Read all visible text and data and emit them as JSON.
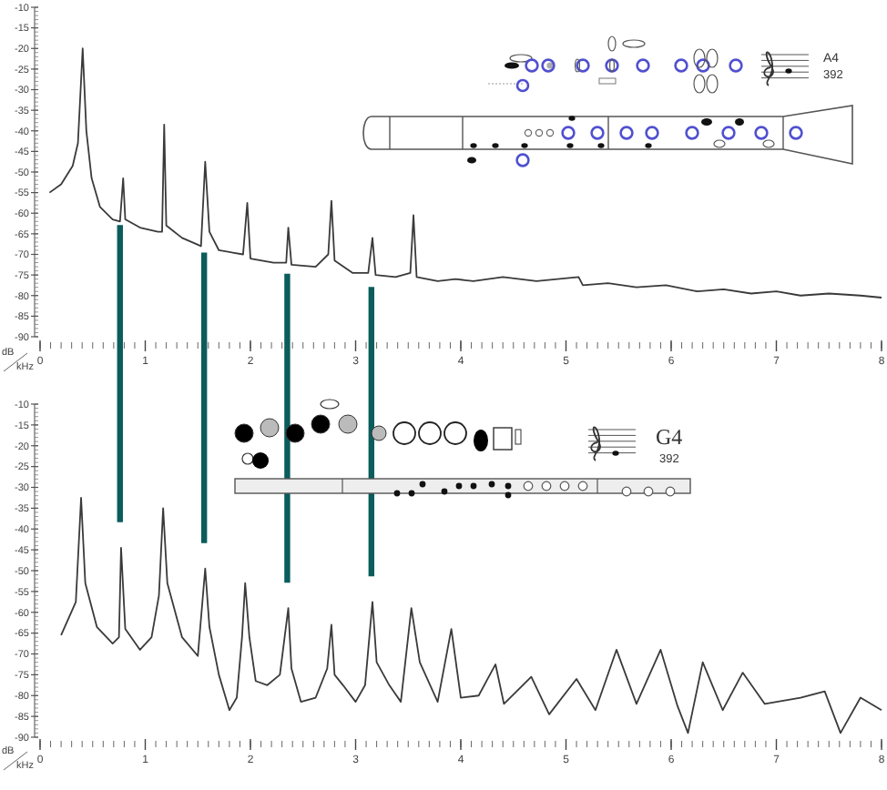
{
  "chart_data": [
    {
      "type": "line",
      "xlabel": "kHz",
      "ylabel": "dB",
      "xlim": [
        0,
        8
      ],
      "xticks": [
        0,
        1,
        2,
        3,
        4,
        5,
        6,
        7,
        8
      ],
      "ylim": [
        -90,
        -10
      ],
      "yticks": [
        -10,
        -15,
        -20,
        -25,
        -30,
        -35,
        -40,
        -45,
        -50,
        -55,
        -60,
        -65,
        -70,
        -75,
        -80,
        -85,
        -90
      ],
      "annotations": [
        "A4",
        "392"
      ],
      "ref_lines": [
        {
          "axis": "x",
          "value": 0.76,
          "color": "#0b5c5c"
        },
        {
          "axis": "x",
          "value": 1.56,
          "color": "#0b5c5c"
        },
        {
          "axis": "x",
          "value": 2.35,
          "color": "#0b5c5c"
        },
        {
          "axis": "x",
          "value": 3.15,
          "color": "#0b5c5c"
        }
      ],
      "series": [
        {
          "color": "#3a3a3a",
          "x": [
            0.09,
            0.2,
            0.31,
            0.36,
            0.405,
            0.44,
            0.49,
            0.57,
            0.69,
            0.76,
            0.79,
            0.81,
            0.95,
            1.12,
            1.16,
            1.18,
            1.2,
            1.35,
            1.53,
            1.57,
            1.61,
            1.7,
            1.93,
            1.97,
            2.0,
            2.22,
            2.34,
            2.36,
            2.39,
            2.62,
            2.74,
            2.77,
            2.8,
            2.97,
            3.12,
            3.16,
            3.19,
            3.38,
            3.52,
            3.55,
            3.58,
            3.78,
            3.95,
            4.12,
            4.4,
            4.72,
            5.12,
            5.16,
            5.4,
            5.67,
            5.95,
            6.25,
            6.5,
            6.76,
            7.0,
            7.23,
            7.5,
            7.8,
            8.0
          ],
          "values": [
            -55,
            -53,
            -48.5,
            -43,
            -20,
            -40,
            -51.5,
            -58.5,
            -61.5,
            -62,
            -51.5,
            -61.5,
            -63.5,
            -64.5,
            -64.5,
            -38.5,
            -63,
            -66,
            -68,
            -47.5,
            -64.5,
            -69,
            -70,
            -57.5,
            -71,
            -72,
            -72,
            -63.5,
            -72.5,
            -73,
            -70,
            -57,
            -71.5,
            -74.5,
            -74.5,
            -66,
            -75,
            -75.5,
            -74.5,
            -60.5,
            -75.5,
            -76.5,
            -76,
            -76.5,
            -75.5,
            -76.5,
            -75.5,
            -77.5,
            -77,
            -78,
            -77.5,
            -79,
            -78.5,
            -79.5,
            -79,
            -80,
            -79.5,
            -80,
            -80.5
          ]
        }
      ]
    },
    {
      "type": "line",
      "xlabel": "kHz",
      "ylabel": "dB",
      "xlim": [
        0,
        8
      ],
      "xticks": [
        0,
        1,
        2,
        3,
        4,
        5,
        6,
        7,
        8
      ],
      "ylim": [
        -90,
        -10
      ],
      "yticks": [
        -10,
        -15,
        -20,
        -25,
        -30,
        -35,
        -40,
        -45,
        -50,
        -55,
        -60,
        -65,
        -70,
        -75,
        -80,
        -85,
        -90
      ],
      "annotations": [
        "G4",
        "392"
      ],
      "series": [
        {
          "color": "#3a3a3a",
          "x": [
            0.2,
            0.34,
            0.39,
            0.43,
            0.54,
            0.69,
            0.75,
            0.77,
            0.81,
            0.95,
            1.06,
            1.13,
            1.17,
            1.21,
            1.35,
            1.5,
            1.57,
            1.61,
            1.7,
            1.8,
            1.87,
            1.92,
            1.95,
            1.99,
            2.05,
            2.16,
            2.28,
            2.36,
            2.39,
            2.48,
            2.62,
            2.73,
            2.77,
            2.8,
            2.88,
            3.0,
            3.09,
            3.16,
            3.2,
            3.32,
            3.43,
            3.53,
            3.61,
            3.78,
            3.91,
            4.0,
            4.17,
            4.33,
            4.41,
            4.67,
            4.84,
            5.1,
            5.28,
            5.48,
            5.67,
            5.9,
            6.06,
            6.16,
            6.3,
            6.49,
            6.68,
            6.89,
            7.23,
            7.46,
            7.61,
            7.8,
            8.0
          ],
          "values": [
            -65.5,
            -57.5,
            -32.5,
            -53,
            -63.5,
            -67.5,
            -66,
            -44.5,
            -64,
            -69,
            -66,
            -56,
            -35,
            -53,
            -66,
            -70.5,
            -49.5,
            -63.5,
            -75,
            -83.5,
            -80.5,
            -66,
            -53,
            -66,
            -76.5,
            -77.5,
            -75,
            -59,
            -73.5,
            -81.5,
            -80.5,
            -73.5,
            -63,
            -75,
            -77.5,
            -81.5,
            -77.5,
            -57.5,
            -72,
            -77.5,
            -81.5,
            -59,
            -72,
            -81.5,
            -64,
            -80.5,
            -80,
            -72.5,
            -82,
            -75.5,
            -84.5,
            -76,
            -83.5,
            -69,
            -82,
            -69,
            -82.5,
            -89,
            -72,
            -83.5,
            -74.5,
            -82,
            -80.5,
            -79,
            -89,
            -80.5,
            -83.5
          ]
        }
      ]
    }
  ]
}
